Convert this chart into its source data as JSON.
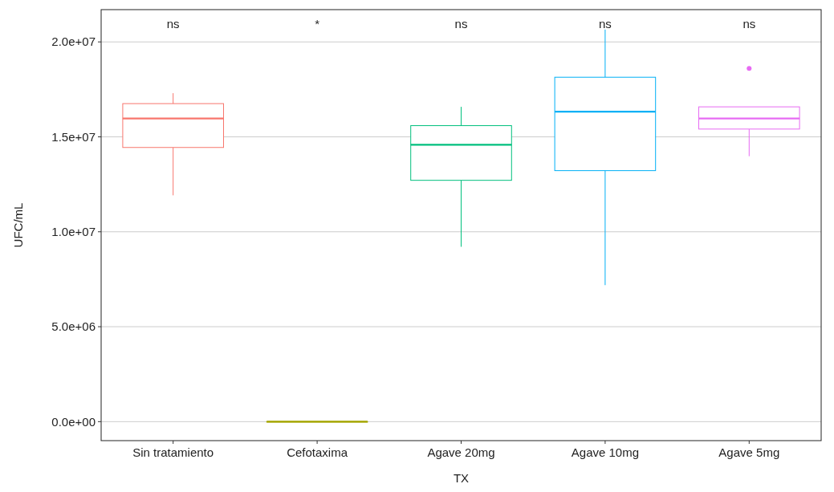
{
  "chart_data": {
    "type": "box",
    "xlabel": "TX",
    "ylabel": "UFC/mL",
    "categories": [
      "Sin tratamiento",
      "Cefotaxima",
      "Agave 20mg",
      "Agave 10mg",
      "Agave 5mg"
    ],
    "colors": [
      "#f8766d",
      "#a3a500",
      "#00bf7d",
      "#00b0f6",
      "#e76bf3"
    ],
    "boxes": [
      {
        "low": 11920000,
        "q1": 14440000,
        "median": 15970000,
        "q3": 16750000,
        "high": 17300000
      },
      {
        "low": 0,
        "q1": 0,
        "median": 0,
        "q3": 0,
        "high": 0
      },
      {
        "low": 9210000,
        "q1": 12710000,
        "median": 14580000,
        "q3": 15590000,
        "high": 16580000
      },
      {
        "low": 7190000,
        "q1": 13220000,
        "median": 16330000,
        "q3": 18140000,
        "high": 20650000
      },
      {
        "low": 13980000,
        "q1": 15410000,
        "median": 15970000,
        "q3": 16580000,
        "high": 16580000,
        "outliers": [
          18600000
        ]
      }
    ],
    "ylim": [
      -1000000,
      21700000
    ],
    "yticks": [
      {
        "value": 0,
        "label": "0.0e+00"
      },
      {
        "value": 5000000,
        "label": "5.0e+06"
      },
      {
        "value": 10000000,
        "label": "1.0e+07"
      },
      {
        "value": 15000000,
        "label": "1.5e+07"
      },
      {
        "value": 20000000,
        "label": "2.0e+07"
      }
    ],
    "grid": "y",
    "annotations": [
      "ns",
      "*",
      "ns",
      "ns",
      "ns"
    ]
  }
}
